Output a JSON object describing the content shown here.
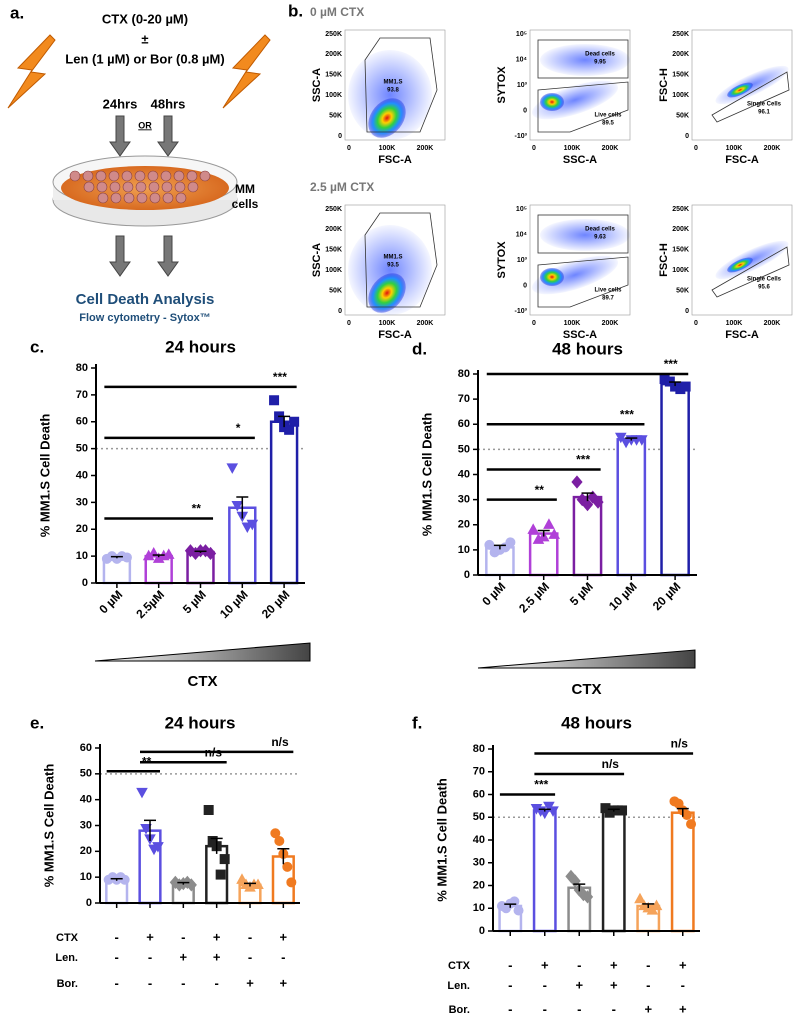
{
  "panel_a": {
    "label": "a.",
    "treatment": "CTX (0-20 µM)",
    "plus_minus": "±",
    "combination": "Len (1 µM) or Bor (0.8 µM)",
    "time_1": "24hrs",
    "or": "OR",
    "time_2": "48hrs",
    "cells_1": "MM",
    "cells_2": "cells",
    "analysis_title": "Cell Death Analysis",
    "analysis_subtitle": "Flow cytometry - Sytox™"
  },
  "panel_b": {
    "label": "b.",
    "axis_ticks": {
      "linear": [
        "250K",
        "200K",
        "150K",
        "100K",
        "50K",
        "0"
      ],
      "x": [
        "0",
        "100K",
        "200K"
      ],
      "log": [
        "10⁵",
        "10⁴",
        "10³",
        "0",
        "-10³"
      ]
    },
    "rows": [
      {
        "title": "0 µM CTX",
        "plots": [
          {
            "x_label": "FSC-A",
            "y_label": "SSC-A",
            "gates": [
              {
                "name": "MM1.S",
                "value": 93.8
              }
            ]
          },
          {
            "x_label": "SSC-A",
            "y_label": "SYTOX",
            "gates": [
              {
                "name": "Dead cells",
                "value": 9.95
              },
              {
                "name": "Live cells",
                "value": 89.5
              }
            ]
          },
          {
            "x_label": "FSC-A",
            "y_label": "FSC-H",
            "gates": [
              {
                "name": "Single Cells",
                "value": 96.1
              }
            ]
          }
        ]
      },
      {
        "title": "2.5 µM CTX",
        "plots": [
          {
            "x_label": "FSC-A",
            "y_label": "SSC-A",
            "gates": [
              {
                "name": "MM1.S",
                "value": 93.5
              }
            ]
          },
          {
            "x_label": "SSC-A",
            "y_label": "SYTOX",
            "gates": [
              {
                "name": "Dead cells",
                "value": 9.63
              },
              {
                "name": "Live cells",
                "value": 89.7
              }
            ]
          },
          {
            "x_label": "FSC-A",
            "y_label": "FSC-H",
            "gates": [
              {
                "name": "Single Cells",
                "value": 95.6
              }
            ]
          }
        ]
      }
    ]
  },
  "chart_data": [
    {
      "type": "bar",
      "label": "c.",
      "title": "24 hours",
      "y_label": "% MM1.S Cell Death",
      "x_title": "CTX",
      "categories": [
        "0 µM",
        "2.5µM",
        "5 µM",
        "10 µM",
        "20 µM"
      ],
      "values": [
        9.5,
        10,
        11.5,
        28,
        60
      ],
      "errors": [
        0.3,
        0.4,
        0.3,
        4,
        2
      ],
      "points": [
        [
          9,
          10,
          9,
          10,
          9.5
        ],
        [
          10,
          11,
          9,
          10,
          10.5
        ],
        [
          12,
          11,
          12,
          12,
          11
        ],
        [
          43,
          29,
          25,
          21,
          22
        ],
        [
          68,
          62,
          58,
          57,
          60
        ]
      ],
      "colors": [
        "#b4b4ee",
        "#b040d8",
        "#7b1fa2",
        "#5b4fe0",
        "#1f1fa8"
      ],
      "markers": [
        "circle",
        "triangle",
        "diamond",
        "inverted-triangle",
        "square"
      ],
      "ylim": [
        0,
        80
      ],
      "yticks": [
        0,
        10,
        20,
        30,
        40,
        50,
        60,
        70,
        80
      ],
      "reference": 50,
      "significance": [
        {
          "from": 0,
          "to": 2,
          "y": 24,
          "label": "**"
        },
        {
          "from": 0,
          "to": 3,
          "y": 54,
          "label": "*"
        },
        {
          "from": 0,
          "to": 4,
          "y": 73,
          "label": "***"
        }
      ]
    },
    {
      "type": "bar",
      "label": "d.",
      "title": "48 hours",
      "y_label": "% MM1.S Cell Death",
      "x_title": "CTX",
      "categories": [
        "0 µM",
        "2.5 µM",
        "5 µM",
        "10 µM",
        "20 µM"
      ],
      "values": [
        11,
        16.5,
        31,
        54,
        76
      ],
      "errors": [
        0.8,
        1.2,
        1.6,
        0.5,
        0.8
      ],
      "points": [
        [
          12,
          9,
          10,
          11,
          13
        ],
        [
          18,
          14,
          15,
          20,
          16
        ],
        [
          37,
          30,
          28,
          31,
          29
        ],
        [
          55,
          53,
          54,
          54,
          54
        ],
        [
          78,
          77,
          75,
          74,
          75
        ]
      ],
      "colors": [
        "#b4b4ee",
        "#b040d8",
        "#7b1fa2",
        "#5b4fe0",
        "#1f1fa8"
      ],
      "markers": [
        "circle",
        "triangle",
        "diamond",
        "inverted-triangle",
        "square"
      ],
      "ylim": [
        0,
        80
      ],
      "yticks": [
        0,
        10,
        20,
        30,
        40,
        50,
        60,
        70,
        80
      ],
      "reference": 50,
      "significance": [
        {
          "from": 0,
          "to": 1,
          "y": 30,
          "label": "**"
        },
        {
          "from": 0,
          "to": 2,
          "y": 42,
          "label": "***"
        },
        {
          "from": 0,
          "to": 3,
          "y": 60,
          "label": "***"
        },
        {
          "from": 0,
          "to": 4,
          "y": 80,
          "label": "***"
        }
      ]
    },
    {
      "type": "bar",
      "label": "e.",
      "title": "24 hours",
      "y_label": "% MM1.S Cell Death",
      "conditions": [
        {
          "name": "CTX",
          "signs": [
            "-",
            "+",
            "-",
            "+",
            "-",
            "+"
          ]
        },
        {
          "name": "Len.",
          "signs": [
            "-",
            "-",
            "+",
            "+",
            "-",
            "-"
          ]
        },
        {
          "name": "Bor.",
          "signs": [
            "-",
            "-",
            "-",
            "-",
            "+",
            "+"
          ]
        }
      ],
      "values": [
        9,
        28,
        7.5,
        22,
        7,
        18
      ],
      "errors": [
        0.4,
        4,
        0.4,
        3,
        0.6,
        3
      ],
      "points": [
        [
          9,
          10,
          9,
          10,
          9
        ],
        [
          43,
          29,
          25,
          21,
          22
        ],
        [
          8,
          7,
          7.5,
          8,
          7
        ],
        [
          36,
          24,
          22,
          11,
          17
        ],
        [
          9,
          7,
          6,
          7,
          7
        ],
        [
          27,
          24,
          19,
          14,
          8
        ]
      ],
      "colors": [
        "#b4b4ee",
        "#5b4fe0",
        "#8c8c8c",
        "#222222",
        "#f5a35a",
        "#f07a20"
      ],
      "markers": [
        "circle",
        "inverted-triangle",
        "diamond",
        "square",
        "triangle",
        "circle"
      ],
      "ylim": [
        0,
        60
      ],
      "yticks": [
        0,
        10,
        20,
        30,
        40,
        50,
        60
      ],
      "reference": 50,
      "significance": [
        {
          "from": 0,
          "to": 1,
          "y": 51,
          "label": "**"
        },
        {
          "from": 1,
          "to": 3,
          "y": 54.5,
          "label": "n/s"
        },
        {
          "from": 1,
          "to": 5,
          "y": 58.5,
          "label": "n/s"
        }
      ]
    },
    {
      "type": "bar",
      "label": "f.",
      "title": "48 hours",
      "y_label": "% MM1.S Cell Death",
      "conditions": [
        {
          "name": "CTX",
          "signs": [
            "-",
            "+",
            "-",
            "+",
            "-",
            "+"
          ]
        },
        {
          "name": "Len.",
          "signs": [
            "-",
            "-",
            "+",
            "+",
            "-",
            "-"
          ]
        },
        {
          "name": "Bor.",
          "signs": [
            "-",
            "-",
            "-",
            "-",
            "+",
            "+"
          ]
        }
      ],
      "values": [
        11,
        53,
        19,
        53,
        11,
        52
      ],
      "errors": [
        0.8,
        0.5,
        1.6,
        0.5,
        0.9,
        1.8
      ],
      "points": [
        [
          11,
          10,
          12,
          13,
          9
        ],
        [
          54,
          53,
          52,
          55,
          53
        ],
        [
          24,
          22,
          18,
          16,
          15
        ],
        [
          54,
          52,
          53,
          53,
          53
        ],
        [
          14,
          11,
          10,
          9,
          11
        ],
        [
          57,
          56,
          53,
          51,
          47
        ]
      ],
      "colors": [
        "#b4b4ee",
        "#5b4fe0",
        "#8c8c8c",
        "#222222",
        "#f5a35a",
        "#f07a20"
      ],
      "markers": [
        "circle",
        "inverted-triangle",
        "diamond",
        "square",
        "triangle",
        "circle"
      ],
      "ylim": [
        0,
        80
      ],
      "yticks": [
        0,
        10,
        20,
        30,
        40,
        50,
        60,
        70,
        80
      ],
      "reference": 50,
      "significance": [
        {
          "from": 0,
          "to": 1,
          "y": 60,
          "label": "***"
        },
        {
          "from": 1,
          "to": 3,
          "y": 69,
          "label": "n/s"
        },
        {
          "from": 1,
          "to": 5,
          "y": 78,
          "label": "n/s"
        }
      ]
    }
  ]
}
